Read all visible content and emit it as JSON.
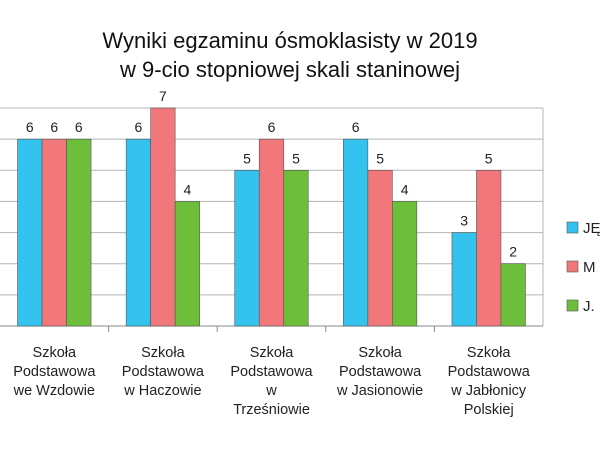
{
  "chart_data": {
    "type": "bar",
    "title": [
      "Wyniki egzaminu ósmoklasisty w 2019",
      "w 9-cio stopniowej skali staninowej"
    ],
    "categories": [
      [
        "Szkoła",
        "Podstawowa",
        "we Wzdowie"
      ],
      [
        "Szkoła",
        "Podstawowa",
        "w Haczowie"
      ],
      [
        "Szkoła",
        "Podstawowa",
        "w",
        "Trześniowie"
      ],
      [
        "Szkoła",
        "Podstawowa",
        "w Jasionowie"
      ],
      [
        "Szkoła",
        "Podstawowa",
        "w Jabłonicy",
        "Polskiej"
      ]
    ],
    "series": [
      {
        "name": "JĘ",
        "color": "#33c3ee",
        "values": [
          6,
          6,
          5,
          6,
          3
        ]
      },
      {
        "name": "M",
        "color": "#f2777a",
        "values": [
          6,
          7,
          6,
          5,
          5
        ]
      },
      {
        "name": "J.",
        "color": "#6dbe3a",
        "values": [
          6,
          4,
          5,
          4,
          2
        ]
      }
    ],
    "ylim": [
      0,
      7
    ],
    "grid": true,
    "legend": "right"
  }
}
